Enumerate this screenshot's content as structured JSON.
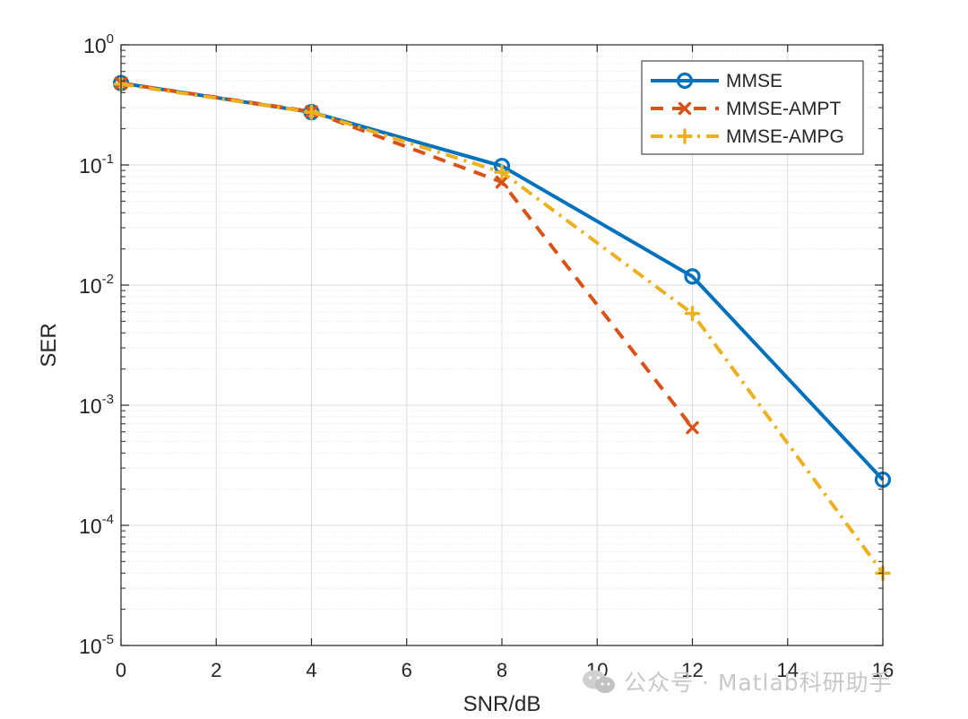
{
  "chart_data": {
    "type": "line",
    "xlabel": "SNR/dB",
    "ylabel": "SER",
    "x_scale": "linear",
    "y_scale": "log",
    "xlim": [
      0,
      16
    ],
    "ylim": [
      1e-05,
      1
    ],
    "x_ticks": [
      0,
      2,
      4,
      6,
      8,
      10,
      12,
      14,
      16
    ],
    "y_ticks": [
      {
        "value": 1,
        "base": "10",
        "exp": "0"
      },
      {
        "value": 0.1,
        "base": "10",
        "exp": "-1"
      },
      {
        "value": 0.01,
        "base": "10",
        "exp": "-2"
      },
      {
        "value": 0.001,
        "base": "10",
        "exp": "-3"
      },
      {
        "value": 0.0001,
        "base": "10",
        "exp": "-4"
      },
      {
        "value": 1e-05,
        "base": "10",
        "exp": "-5"
      }
    ],
    "grid": true,
    "minor_grid": true,
    "legend_position": "top-right",
    "series": [
      {
        "name": "MMSE",
        "color": "#0072BD",
        "line": "solid",
        "marker": "circle",
        "x": [
          0,
          4,
          8,
          12,
          16
        ],
        "y": [
          0.48,
          0.275,
          0.098,
          0.0118,
          0.00024
        ]
      },
      {
        "name": "MMSE-AMPT",
        "color": "#D95319",
        "line": "dashed",
        "marker": "x",
        "x": [
          0,
          4,
          8,
          12
        ],
        "y": [
          0.48,
          0.278,
          0.072,
          0.00065
        ]
      },
      {
        "name": "MMSE-AMPG",
        "color": "#EDB120",
        "line": "dashdot",
        "marker": "plus",
        "x": [
          0,
          4,
          8,
          12,
          16
        ],
        "y": [
          0.47,
          0.275,
          0.087,
          0.0058,
          4e-05
        ]
      }
    ]
  },
  "watermark": {
    "icon": "wechat-icon",
    "text": "公众号 · Matlab科研助手"
  }
}
